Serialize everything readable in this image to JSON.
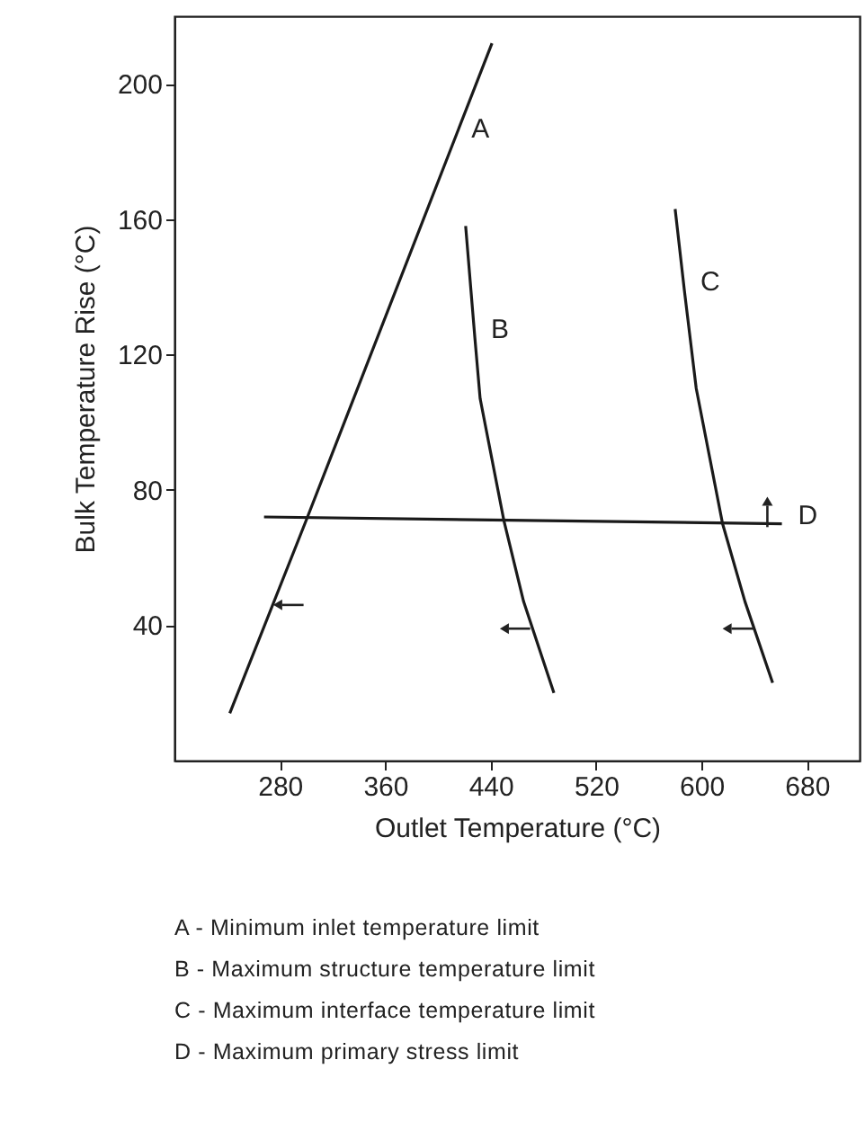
{
  "chart_data": {
    "type": "line",
    "xlabel": "Outlet Temperature (°C)",
    "ylabel": "Bulk Temperature Rise (°C)",
    "xlim": [
      200,
      720
    ],
    "xticks": [
      280,
      360,
      440,
      520,
      600,
      680
    ],
    "ylim": [
      0,
      220
    ],
    "yticks": [
      40,
      80,
      120,
      160,
      200
    ],
    "grid": false,
    "marker": "none",
    "line_style": "solid",
    "series": [
      {
        "color": "#1a1a1a",
        "x": [
          242,
          300,
          413,
          441
        ],
        "values": [
          14,
          71,
          184,
          212
        ]
      },
      {
        "color": "#1a1a1a",
        "x": [
          421,
          428,
          432,
          450,
          465,
          488
        ],
        "values": [
          158,
          125,
          107,
          71,
          47,
          20
        ]
      },
      {
        "color": "#1a1a1a",
        "x": [
          580,
          587,
          596,
          616,
          633,
          654
        ],
        "values": [
          163,
          139,
          110,
          70,
          47,
          23
        ]
      },
      {
        "color": "#1a1a1a",
        "x": [
          268,
          661
        ],
        "values": [
          72,
          70
        ]
      }
    ],
    "annotations": [
      {
        "text": "A",
        "x": 413,
        "y": 184
      },
      {
        "text": "B",
        "x": 428,
        "y": 125
      },
      {
        "text": "C",
        "x": 587,
        "y": 139
      },
      {
        "text": "D",
        "x": 661,
        "y": 70
      },
      "A - Minimum inlet temperature limit",
      "B - Maximum structure temperature limit",
      "C - Maximum interface temperature limit",
      "D - Maximum primary stress limit"
    ]
  }
}
